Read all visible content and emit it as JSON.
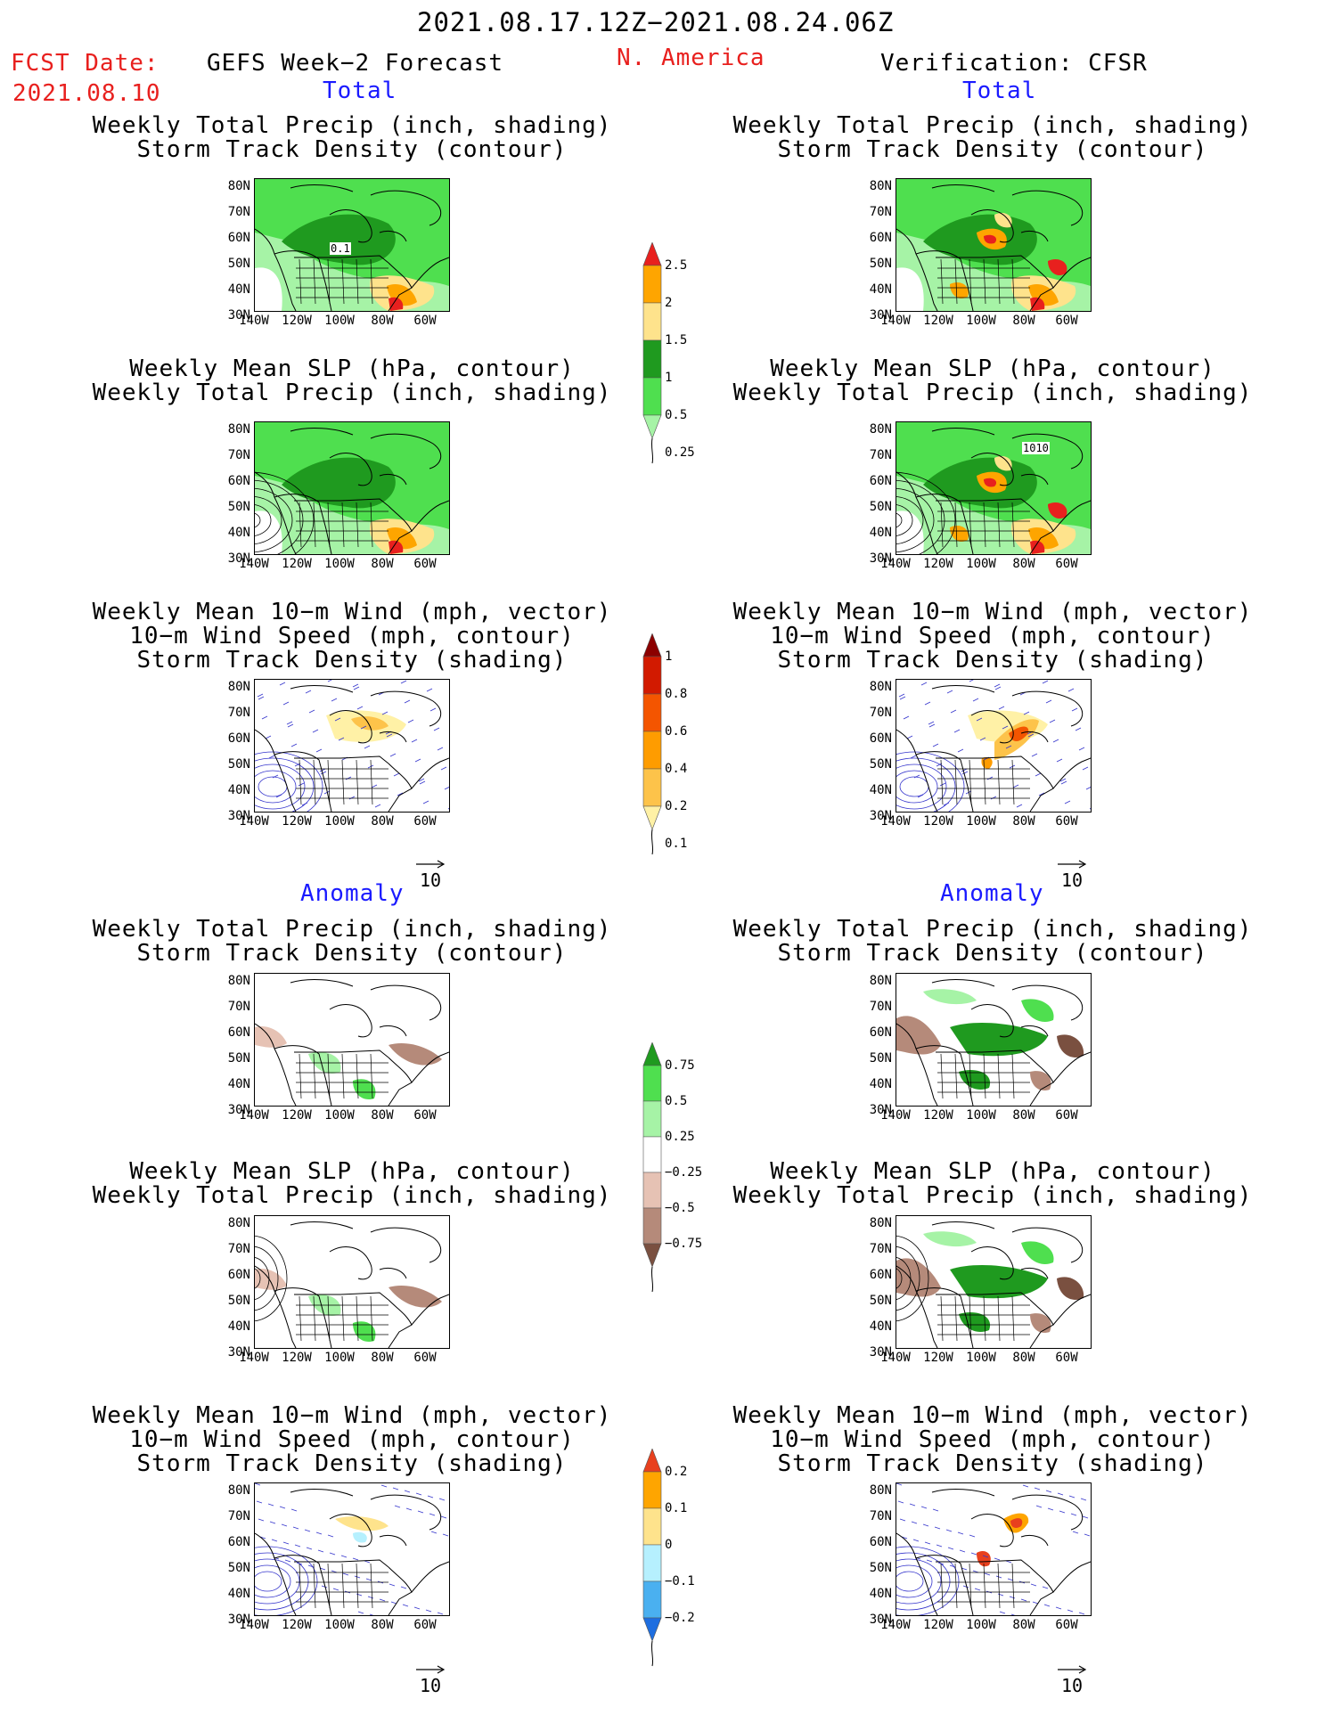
{
  "header": {
    "title": "2021.08.17.12Z−2021.08.24.06Z",
    "fcst_label": "FCST Date:",
    "fcst_date": "2021.08.10",
    "left_title": "GEFS Week−2 Forecast",
    "region": "N. America",
    "right_title": "Verification: CFSR"
  },
  "sections": {
    "total": "Total",
    "anomaly": "Anomaly"
  },
  "panel_titles": [
    [
      "Weekly Total Precip (inch, shading)",
      "Storm Track Density (contour)"
    ],
    [
      "Weekly Mean SLP (hPa, contour)",
      "Weekly Total Precip (inch, shading)"
    ],
    [
      "Weekly Mean 10−m Wind (mph, vector)",
      "10−m Wind Speed (mph, contour)",
      "Storm Track Density (shading)"
    ]
  ],
  "axes": {
    "lat_ticks": [
      "80N",
      "70N",
      "60N",
      "50N",
      "40N",
      "30N"
    ],
    "lon_ticks": [
      "140W",
      "120W",
      "100W",
      "80W",
      "60W"
    ]
  },
  "map_labels": {
    "forecast_storm_contour": "0.1",
    "verif_slp_contour": "1010"
  },
  "vector_reference": "10",
  "colorbars": {
    "precip_total": {
      "labels": [
        "2.5",
        "2",
        "1.5",
        "1",
        "0.5",
        "0.25"
      ],
      "colors": [
        "#e8201e",
        "#fea500",
        "#fee38c",
        "#1f9a1f",
        "#4fdf4f",
        "#a6f3a6"
      ]
    },
    "storm_total": {
      "labels": [
        "1",
        "0.8",
        "0.6",
        "0.4",
        "0.2",
        "0.1"
      ],
      "colors": [
        "#8c0000",
        "#d21a00",
        "#f45500",
        "#fe9c00",
        "#fdc34a",
        "#fff1a6"
      ]
    },
    "precip_anomaly": {
      "labels": [
        "0.75",
        "0.5",
        "0.25",
        "−0.25",
        "−0.5",
        "−0.75"
      ],
      "colors": [
        "#1f9a1f",
        "#4fdf4f",
        "#a6f3a6",
        "#ffffff",
        "#e6c2b4",
        "#b58a7a",
        "#7a5040"
      ]
    },
    "storm_anomaly": {
      "labels": [
        "0.2",
        "0.1",
        "0",
        "−0.1",
        "−0.2"
      ],
      "colors": [
        "#e8401e",
        "#fea500",
        "#fee38c",
        "#b6f0fe",
        "#4ab0f0",
        "#1e6ee0"
      ]
    }
  },
  "colors": {
    "title_red": "#e8201e",
    "section_blue": "#1a1aff",
    "wind_blue": "#3333cc",
    "land_line": "#000000"
  }
}
